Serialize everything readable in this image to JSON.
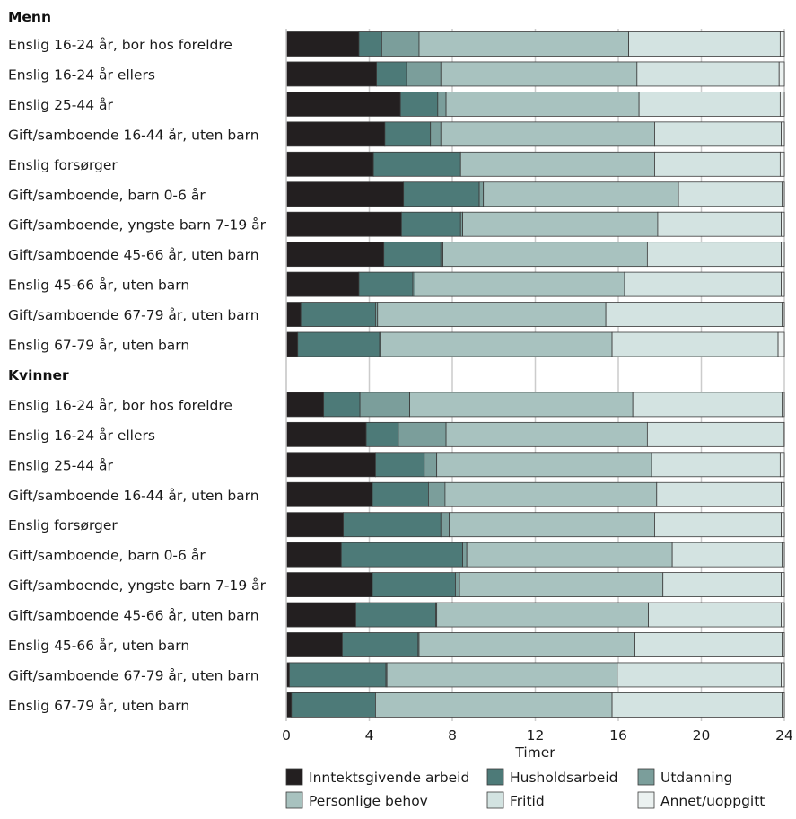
{
  "chart_data": {
    "type": "bar",
    "orientation": "horizontal",
    "stacked": true,
    "xlabel": "Timer",
    "xlim": [
      0,
      24
    ],
    "xticks": [
      0,
      4,
      8,
      12,
      16,
      20,
      24
    ],
    "grid": true,
    "legend_position": "bottom",
    "series": [
      {
        "name": "Inntektsgivende arbeid",
        "color": "#231f20"
      },
      {
        "name": "Husholdsarbeid",
        "color": "#4d7a78"
      },
      {
        "name": "Utdanning",
        "color": "#7b9e9b"
      },
      {
        "name": "Personlige behov",
        "color": "#a8c2bf"
      },
      {
        "name": "Fritid",
        "color": "#d3e3e1"
      },
      {
        "name": "Annet/uoppgitt",
        "color": "#ebf1f0"
      }
    ],
    "groups": [
      {
        "name": "Menn",
        "rows": [
          {
            "label": "Enslig 16-24 år, bor hos foreldre",
            "values": [
              3.5,
              1.1,
              1.8,
              10.1,
              7.3,
              0.2
            ]
          },
          {
            "label": "Enslig 16-24 år ellers",
            "values": [
              4.35,
              1.45,
              1.65,
              9.45,
              6.85,
              0.25
            ]
          },
          {
            "label": "Enslig 25-44 år",
            "values": [
              5.5,
              1.8,
              0.4,
              9.3,
              6.8,
              0.2
            ]
          },
          {
            "label": "Gift/samboende 16-44 år, uten barn",
            "values": [
              4.75,
              2.2,
              0.5,
              10.3,
              6.1,
              0.15
            ]
          },
          {
            "label": "Enslig forsørger",
            "values": [
              4.2,
              4.2,
              0.0,
              9.35,
              6.05,
              0.2
            ]
          },
          {
            "label": "Gift/samboende, barn 0-6 år",
            "values": [
              5.65,
              3.65,
              0.2,
              9.4,
              5.0,
              0.1
            ]
          },
          {
            "label": "Gift/samboende, yngste barn 7-19 år",
            "values": [
              5.55,
              2.85,
              0.1,
              9.4,
              5.95,
              0.15
            ]
          },
          {
            "label": "Gift/samboende 45-66 år, uten barn",
            "values": [
              4.7,
              2.75,
              0.1,
              9.85,
              6.45,
              0.15
            ]
          },
          {
            "label": "Enslig 45-66 år, uten barn",
            "values": [
              3.5,
              2.6,
              0.1,
              10.1,
              7.55,
              0.15
            ]
          },
          {
            "label": "Gift/samboende 67-79 år, uten barn",
            "values": [
              0.7,
              3.6,
              0.1,
              11.0,
              8.5,
              0.1
            ]
          },
          {
            "label": "Enslig 67-79 år, uten barn",
            "values": [
              0.55,
              3.95,
              0.05,
              11.15,
              8.0,
              0.3
            ]
          }
        ]
      },
      {
        "name": "Kvinner",
        "rows": [
          {
            "label": "Enslig 16-24 år, bor hos foreldre",
            "values": [
              1.8,
              1.75,
              2.4,
              10.75,
              7.2,
              0.1
            ]
          },
          {
            "label": "Enslig 16-24 år ellers",
            "values": [
              3.85,
              1.55,
              2.3,
              9.7,
              6.55,
              0.05
            ]
          },
          {
            "label": "Enslig 25-44 år",
            "values": [
              4.3,
              2.35,
              0.6,
              10.35,
              6.2,
              0.2
            ]
          },
          {
            "label": "Gift/samboende 16-44 år, uten barn",
            "values": [
              4.15,
              2.7,
              0.8,
              10.2,
              6.0,
              0.15
            ]
          },
          {
            "label": "Enslig forsørger",
            "values": [
              2.75,
              4.7,
              0.4,
              9.9,
              6.1,
              0.15
            ]
          },
          {
            "label": "Gift/samboende, barn 0-6 år",
            "values": [
              2.65,
              5.85,
              0.2,
              9.9,
              5.3,
              0.1
            ]
          },
          {
            "label": "Gift/samboende, yngste barn 7-19 år",
            "values": [
              4.15,
              4.0,
              0.2,
              9.8,
              5.7,
              0.15
            ]
          },
          {
            "label": "Gift/samboende 45-66 år, uten barn",
            "values": [
              3.35,
              3.85,
              0.05,
              10.2,
              6.4,
              0.15
            ]
          },
          {
            "label": "Enslig 45-66 år, uten barn",
            "values": [
              2.7,
              3.65,
              0.05,
              10.4,
              7.1,
              0.1
            ]
          },
          {
            "label": "Gift/samboende 67-79 år, uten barn",
            "values": [
              0.15,
              4.65,
              0.05,
              11.1,
              7.9,
              0.15
            ]
          },
          {
            "label": "Enslig 67-79 år, uten barn",
            "values": [
              0.25,
              4.05,
              0.0,
              11.4,
              8.2,
              0.1
            ]
          }
        ]
      }
    ]
  }
}
